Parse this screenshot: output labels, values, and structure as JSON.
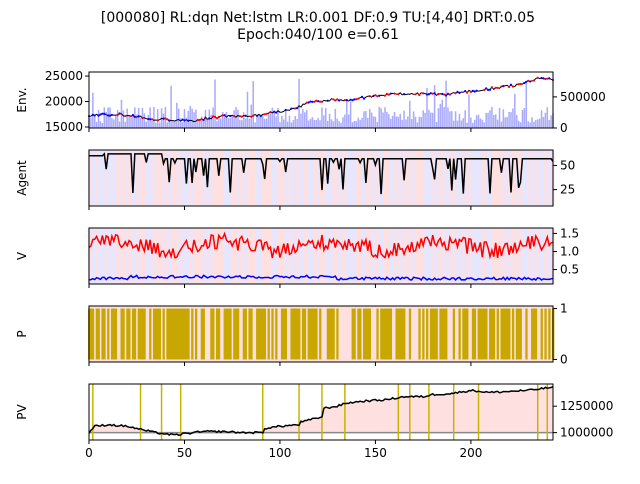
{
  "title_line1": "[000080] RL:dqn Net:lstm LR:0.001 DF:0.9 TU:[4,40] DRT:0.05",
  "title_line2": "Epoch:040/100 e=0.61",
  "colors": {
    "price": "#000000",
    "buy": "#0000ff",
    "sell": "#ff0000",
    "volume": "#aaaaff",
    "agent_line": "#000000",
    "bg_buy": "#ffe0e0",
    "bg_sell": "#e6e6ff",
    "v_buy": "#ff0000",
    "v_sell": "#0000ff",
    "p_bar": "#c8a800",
    "pv_line": "#000000",
    "pv_base": "#888888",
    "pv_marker": "#c8b400",
    "pv_fill": "#ffe0e0"
  },
  "chart_data": [
    {
      "type": "line",
      "panel": "env",
      "ylabel": "Env.",
      "y_ticks": [
        15000,
        20000,
        25000
      ],
      "y2_ticks": [
        "0",
        "500000"
      ],
      "ylim": [
        14800,
        25800
      ],
      "y2lim": [
        0,
        900000
      ],
      "xlim": [
        0,
        243
      ],
      "price_anchors": [
        [
          0,
          17300
        ],
        [
          15,
          17500
        ],
        [
          25,
          17000
        ],
        [
          35,
          16500
        ],
        [
          45,
          16400
        ],
        [
          55,
          16200
        ],
        [
          65,
          16900
        ],
        [
          75,
          17200
        ],
        [
          85,
          17100
        ],
        [
          95,
          17700
        ],
        [
          105,
          18300
        ],
        [
          115,
          19700
        ],
        [
          125,
          20300
        ],
        [
          135,
          20300
        ],
        [
          145,
          20800
        ],
        [
          155,
          21300
        ],
        [
          165,
          21500
        ],
        [
          175,
          21500
        ],
        [
          185,
          21300
        ],
        [
          195,
          21900
        ],
        [
          205,
          22200
        ],
        [
          215,
          22800
        ],
        [
          225,
          23300
        ],
        [
          235,
          24600
        ],
        [
          243,
          24400
        ]
      ],
      "volume_series": "approximately 100k-400k daily with spikes up to ~850k"
    },
    {
      "type": "line",
      "panel": "agent",
      "ylabel": "Agent",
      "y_ticks": [
        25,
        50
      ],
      "ylim": [
        8,
        66
      ],
      "xlim": [
        0,
        243
      ]
    },
    {
      "type": "line",
      "panel": "v",
      "ylabel": "V",
      "y_ticks": [
        0.5,
        1.0,
        1.5
      ],
      "y_tick_labels": [
        "0.5",
        "1.0",
        "1.5"
      ],
      "ylim": [
        0.1,
        1.65
      ],
      "xlim": [
        0,
        243
      ],
      "series": [
        {
          "values_mean": 1.15
        },
        {
          "values_mean": 0.28
        }
      ]
    },
    {
      "type": "bar",
      "panel": "p",
      "ylabel": "P",
      "y_ticks": [
        0,
        1
      ],
      "ylim": [
        -0.05,
        1.05
      ],
      "xlim": [
        0,
        243
      ]
    },
    {
      "type": "line",
      "panel": "pv",
      "ylabel": "PV",
      "y_ticks": [
        1000000,
        1250000
      ],
      "y_tick_labels": [
        "1000000",
        "1250000"
      ],
      "ylim": [
        930000,
        1460000
      ],
      "xlim": [
        0,
        243
      ],
      "x_ticks": [
        0,
        50,
        100,
        150,
        200
      ],
      "x_tick_labels": [
        "0",
        "50",
        "100",
        "150",
        "200"
      ],
      "base_value": 1000000,
      "learning_points": [
        2,
        27,
        38,
        48,
        91,
        110,
        122,
        134,
        162,
        168,
        178,
        191,
        204,
        235,
        240
      ],
      "pv_anchors": [
        [
          0,
          1000000
        ],
        [
          3,
          1060000
        ],
        [
          10,
          1075000
        ],
        [
          20,
          1060000
        ],
        [
          27,
          1030000
        ],
        [
          35,
          1000000
        ],
        [
          45,
          975000
        ],
        [
          50,
          990000
        ],
        [
          60,
          1010000
        ],
        [
          70,
          1010000
        ],
        [
          80,
          1000000
        ],
        [
          91,
          1000000
        ],
        [
          92,
          1040000
        ],
        [
          100,
          1060000
        ],
        [
          110,
          1075000
        ],
        [
          111,
          1100000
        ],
        [
          118,
          1130000
        ],
        [
          122,
          1150000
        ],
        [
          123,
          1230000
        ],
        [
          130,
          1250000
        ],
        [
          135,
          1280000
        ],
        [
          145,
          1300000
        ],
        [
          155,
          1310000
        ],
        [
          165,
          1340000
        ],
        [
          175,
          1340000
        ],
        [
          180,
          1360000
        ],
        [
          190,
          1370000
        ],
        [
          200,
          1400000
        ],
        [
          210,
          1380000
        ],
        [
          220,
          1390000
        ],
        [
          230,
          1400000
        ],
        [
          243,
          1430000
        ]
      ]
    }
  ]
}
